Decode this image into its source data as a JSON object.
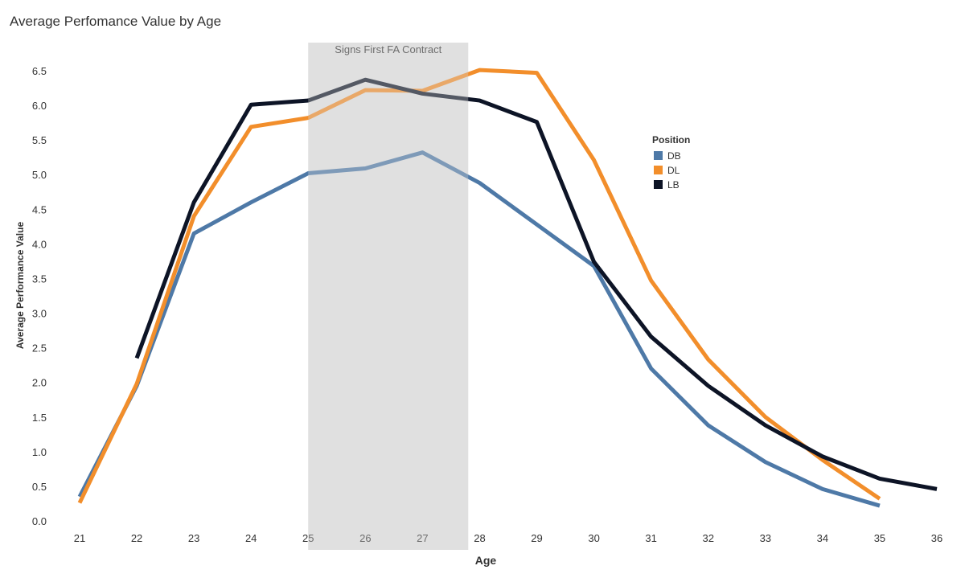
{
  "chart_data": {
    "type": "line",
    "title": "Average Perfomance Value by Age",
    "xlabel": "Age",
    "ylabel": "Average Performance Value",
    "x": [
      21,
      22,
      23,
      24,
      25,
      26,
      27,
      28,
      29,
      30,
      31,
      32,
      33,
      34,
      35,
      36
    ],
    "xlim": [
      21,
      36
    ],
    "ylim": [
      0,
      6.5
    ],
    "yticks": [
      0.0,
      0.5,
      1.0,
      1.5,
      2.0,
      2.5,
      3.0,
      3.5,
      4.0,
      4.5,
      5.0,
      5.5,
      6.0,
      6.5
    ],
    "ytick_labels": [
      "0.0",
      "0.5",
      "1.0",
      "1.5",
      "2.0",
      "2.5",
      "3.0",
      "3.5",
      "4.0",
      "4.5",
      "5.0",
      "5.5",
      "6.0",
      "6.5"
    ],
    "xtick_labels": [
      "21",
      "22",
      "23",
      "24",
      "25",
      "26",
      "27",
      "28",
      "29",
      "30",
      "31",
      "32",
      "33",
      "34",
      "35",
      "36"
    ],
    "grid": false,
    "legend": {
      "title": "Position",
      "placement": "right"
    },
    "series": [
      {
        "name": "DB",
        "color": "#4e79a7",
        "points": [
          [
            21,
            0.35
          ],
          [
            22,
            1.95
          ],
          [
            23,
            4.15
          ],
          [
            24,
            4.6
          ],
          [
            25,
            5.02
          ],
          [
            26,
            5.09
          ],
          [
            27,
            5.32
          ],
          [
            28,
            4.88
          ],
          [
            29,
            4.28
          ],
          [
            30,
            3.68
          ],
          [
            31,
            2.2
          ],
          [
            32,
            1.38
          ],
          [
            33,
            0.85
          ],
          [
            34,
            0.46
          ],
          [
            35,
            0.22
          ]
        ]
      },
      {
        "name": "DL",
        "color": "#f28e2b",
        "points": [
          [
            21,
            0.26
          ],
          [
            22,
            1.98
          ],
          [
            23,
            4.4
          ],
          [
            24,
            5.69
          ],
          [
            25,
            5.82
          ],
          [
            26,
            6.22
          ],
          [
            27,
            6.21
          ],
          [
            28,
            6.51
          ],
          [
            29,
            6.47
          ],
          [
            30,
            5.21
          ],
          [
            31,
            3.47
          ],
          [
            32,
            2.33
          ],
          [
            33,
            1.5
          ],
          [
            34,
            0.88
          ],
          [
            35,
            0.32
          ]
        ]
      },
      {
        "name": "LB",
        "color": "#0d1426",
        "points": [
          [
            22,
            2.35
          ],
          [
            23,
            4.6
          ],
          [
            24,
            6.01
          ],
          [
            25,
            6.07
          ],
          [
            26,
            6.37
          ],
          [
            27,
            6.17
          ],
          [
            28,
            6.07
          ],
          [
            29,
            5.76
          ],
          [
            30,
            3.74
          ],
          [
            31,
            2.66
          ],
          [
            32,
            1.95
          ],
          [
            33,
            1.38
          ],
          [
            34,
            0.93
          ],
          [
            35,
            0.61
          ],
          [
            36,
            0.46
          ]
        ]
      }
    ],
    "annotations": [
      {
        "type": "shaded_band",
        "label": "Signs First FA Contract",
        "x_range": [
          25,
          27.8
        ],
        "color": "#d9d9d9"
      }
    ]
  }
}
